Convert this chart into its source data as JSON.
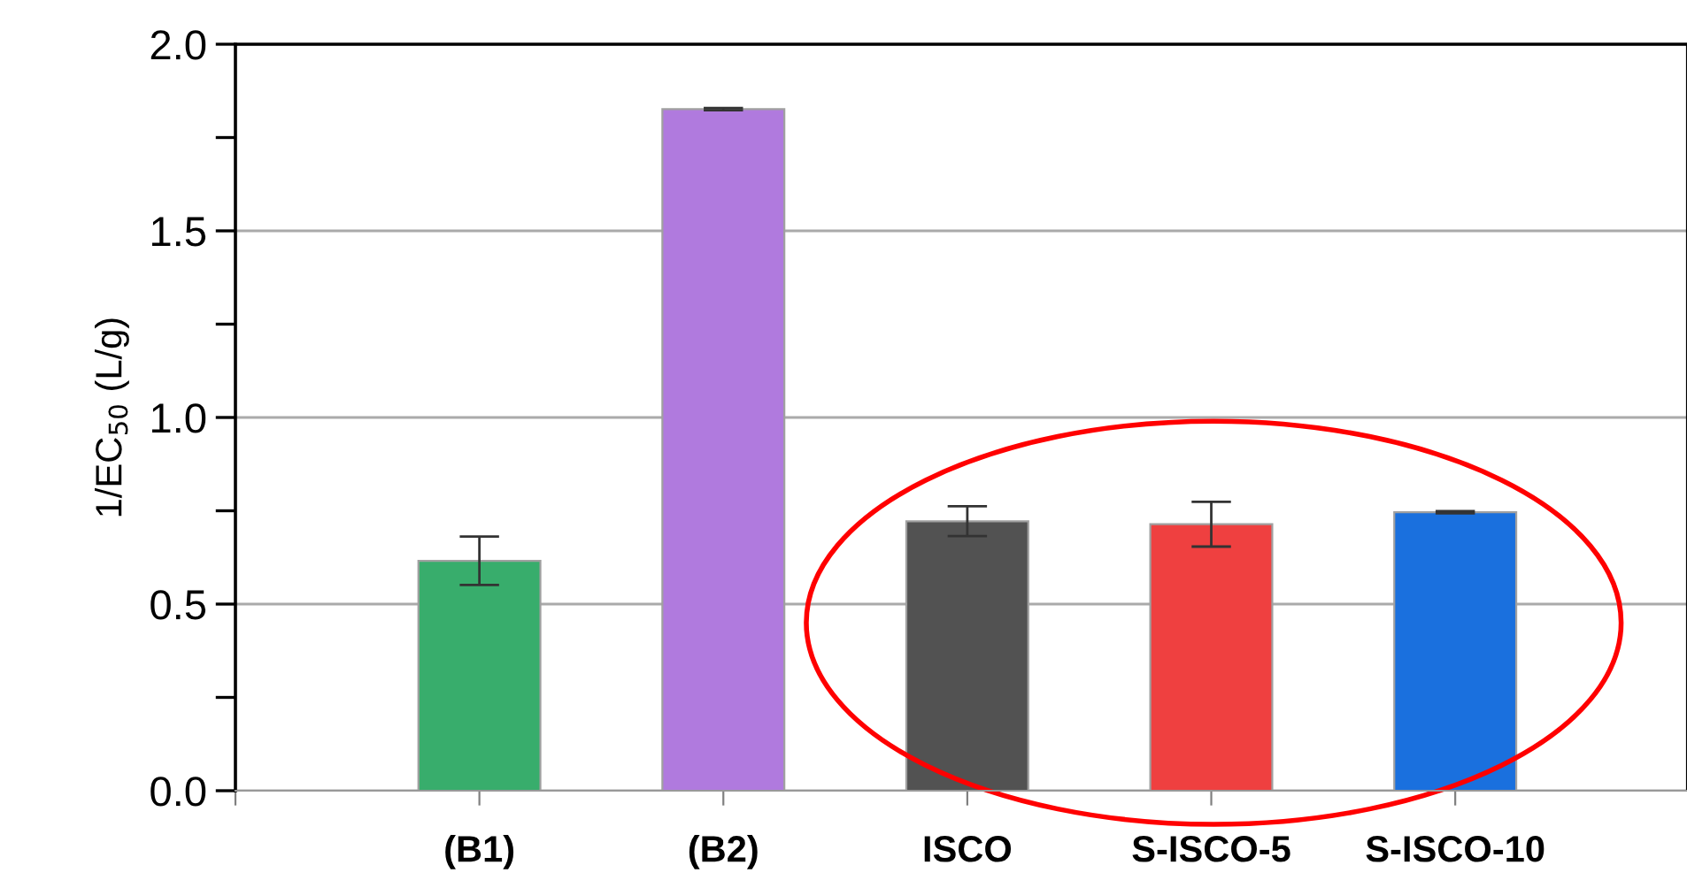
{
  "chart_data": {
    "type": "bar",
    "ylabel": "1/EC$_{50}$ (L/g)",
    "categories": [
      null,
      "(B1)",
      "(B2)",
      "ISCO",
      "S-ISCO-5",
      "S-ISCO-10"
    ],
    "values": [
      null,
      0.616,
      1.826,
      0.722,
      0.714,
      0.746
    ],
    "errors": [
      null,
      0.065,
      0.003,
      0.04,
      0.06,
      0.003
    ],
    "colors": [
      "#ffffff",
      "#38ad6c",
      "#b07ade",
      "#525252",
      "#ef4040",
      "#1a70de"
    ],
    "ylim": [
      0,
      2.0
    ],
    "yticks": [
      {
        "value": 0,
        "label": "0.0"
      },
      {
        "value": 0.25,
        "label": null
      },
      {
        "value": 0.5,
        "label": "0.5"
      },
      {
        "value": 0.75,
        "label": null
      },
      {
        "value": 1.0,
        "label": "1.0"
      },
      {
        "value": 1.25,
        "label": null
      },
      {
        "value": 1.5,
        "label": "1.5"
      },
      {
        "value": 1.75,
        "label": null
      },
      {
        "value": 2.0,
        "label": "2.0"
      }
    ],
    "grid": "y"
  }
}
